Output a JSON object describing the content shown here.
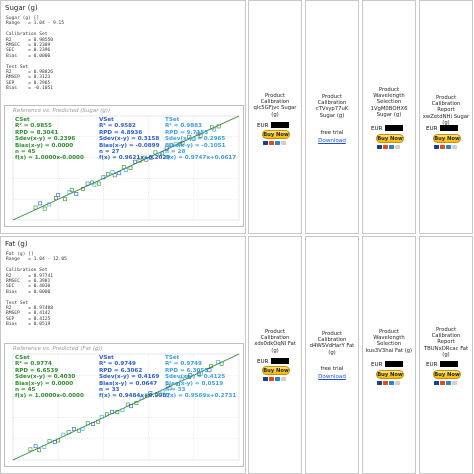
{
  "sections": [
    {
      "title": "Sugar (g)",
      "stats_text": "Sugar (g) []\nRange   = 1.04 - 9.15\n\nCalibration Set\nR2      = 0.98550\nRMSEC   = 0.2389\nSEC     = 0.2396\nBias    = 0.0000\n\nTest Set\nR2      = 0.98826\nRMSEP   = 0.3123\nSEP     = 0.2965\nBias    = -0.1051",
      "plot_title": "Reference vs. Predicted (Sugar (g))",
      "cset": "CSet\nR² = 0.9855\nRPD = 8.3041\nSdev(x-y) = 0.2396\nBias(x-y) = 0.0000\nn = 45\nf(x) = 1.0000x-0.0000",
      "vset": "VSet\nR² = 0.9582\nRPD = 4.8936\nSdev(x-y) = 0.3158\nBias(x-y) = -0.0899\nn = 27\nf(x) = 0.9621x+0.2029",
      "tset": "TSet\nR² = 0.9883\nRPD = 9.7155\nSdev(x-y) = 0.2965\nBias(x-y) = -0.1051\nn = 28\nf(x) = 0.9747x+0.0617",
      "cards": [
        {
          "title": "Product Calibration\nqlc5GFjvc Sugar\n(g)",
          "price": "EUR",
          "buy": "Buy Now",
          "kind": "buy"
        },
        {
          "title": "Product\nCalibration\ncTVsyp77uK\nSugar (g)",
          "trial": "free trial",
          "download": "Download",
          "kind": "trial"
        },
        {
          "title": "Product\nWavelength\nSelection\n1VgM0BOHX6\nSugar (g)",
          "price": "EUR",
          "buy": "Buy Now",
          "kind": "buy"
        },
        {
          "title": "Product Calibration\nReport\nxwZetdNHi Sugar\n(g)",
          "price": "EUR",
          "buy": "Buy Now",
          "kind": "buy"
        }
      ]
    },
    {
      "title": "Fat (g)",
      "stats_text": "Fat (g) []\nRange   = 1.04 - 12.05\n\nCalibration Set\nR2      = 0.97741\nRMSEC   = 0.3981\nSEC     = 0.4030\nBias    = 0.0000\n\nTest Set\nR2      = 0.97488\nRMSEP   = 0.4142\nSEP     = 0.4125\nBias    = 0.0519",
      "plot_title": "Reference vs. Predicted (Fat (g))",
      "cset": "CSet\nR² = 0.9774\nRPD = 6.6539\nSdev(x-y) = 0.4030\nBias(x-y) = 0.0000\nn = 45\nf(x) = 1.0000x-0.0000",
      "vset": "VSet\nR² = 0.9749\nRPD = 6.3062\nSdev(x-y) = 0.4169\nBias(x-y) = 0.0647\nn = 33\nf(x) = 0.9484x+0.2987",
      "tset": "TSet\nR² = 0.9749\nRPD = 6.3055\nSdev(x-y) = 0.4125\nBias(x-y) = 0.0519\nn = 33\nf(x) = 0.9569x+0.2731",
      "cards": [
        {
          "title": "Product Calibration\nxds0dkOqNl Fat\n(g)",
          "price": "EUR",
          "buy": "Buy Now",
          "kind": "buy"
        },
        {
          "title": "Product\nCalibration\nd4WSVdHarY Fat\n(g)",
          "trial": "free trial",
          "download": "Download",
          "kind": "trial"
        },
        {
          "title": "Product\nWavelength\nSelection\nkus3V3hai Fat (g)",
          "price": "EUR",
          "buy": "Buy Now",
          "kind": "buy"
        },
        {
          "title": "Product Calibration\nReport\nTBUNxDRcac Fat\n(g)",
          "price": "EUR",
          "buy": "Buy Now",
          "kind": "buy"
        }
      ]
    }
  ],
  "colors": {
    "cset": "#2e8b2e",
    "vset": "#2a5cc9",
    "tset": "#3aa0e0",
    "buy_button": "#f7b800",
    "link": "#1a4fd6"
  },
  "chart_data": [
    {
      "type": "scatter",
      "title": "Reference vs. Predicted (Sugar (g))",
      "xlim": [
        0,
        10
      ],
      "ylim": [
        0,
        10
      ],
      "series": [
        {
          "name": "CSet",
          "points": [
            [
              1.0,
              1.2
            ],
            [
              1.4,
              1.1
            ],
            [
              1.9,
              2.1
            ],
            [
              2.3,
              2.0
            ],
            [
              2.6,
              2.9
            ],
            [
              3.1,
              3.0
            ],
            [
              3.5,
              3.6
            ],
            [
              3.8,
              3.5
            ],
            [
              4.2,
              4.4
            ],
            [
              4.5,
              4.3
            ],
            [
              4.9,
              5.1
            ],
            [
              5.2,
              5.0
            ],
            [
              5.6,
              5.7
            ],
            [
              5.9,
              5.8
            ],
            [
              6.3,
              6.5
            ],
            [
              6.6,
              6.4
            ],
            [
              7.0,
              7.2
            ],
            [
              7.4,
              7.3
            ],
            [
              7.8,
              8.0
            ],
            [
              8.3,
              8.1
            ],
            [
              8.8,
              8.9
            ],
            [
              9.1,
              9.0
            ]
          ]
        },
        {
          "name": "VSet",
          "points": [
            [
              1.2,
              1.6
            ],
            [
              2.0,
              2.4
            ],
            [
              2.8,
              2.5
            ],
            [
              3.3,
              3.5
            ],
            [
              4.0,
              4.1
            ],
            [
              4.7,
              4.5
            ],
            [
              5.4,
              5.6
            ],
            [
              6.1,
              6.0
            ],
            [
              6.8,
              6.9
            ],
            [
              7.5,
              7.4
            ],
            [
              8.2,
              8.3
            ]
          ]
        },
        {
          "name": "TSet",
          "points": [
            [
              1.6,
              1.5
            ],
            [
              2.5,
              2.7
            ],
            [
              3.6,
              3.4
            ],
            [
              4.4,
              4.6
            ],
            [
              5.0,
              4.8
            ],
            [
              5.8,
              6.0
            ],
            [
              6.5,
              6.3
            ],
            [
              7.2,
              7.3
            ],
            [
              8.0,
              7.8
            ],
            [
              8.9,
              8.7
            ]
          ]
        }
      ]
    },
    {
      "type": "scatter",
      "title": "Reference vs. Predicted (Fat (g))",
      "xlim": [
        0,
        13
      ],
      "ylim": [
        0,
        13
      ],
      "series": [
        {
          "name": "CSet",
          "points": [
            [
              1.0,
              1.3
            ],
            [
              1.5,
              1.2
            ],
            [
              2.1,
              2.3
            ],
            [
              2.6,
              2.4
            ],
            [
              3.2,
              3.4
            ],
            [
              3.8,
              3.6
            ],
            [
              4.3,
              4.5
            ],
            [
              4.9,
              4.7
            ],
            [
              5.4,
              5.6
            ],
            [
              6.0,
              5.9
            ],
            [
              6.6,
              6.8
            ],
            [
              7.1,
              7.0
            ],
            [
              7.7,
              7.9
            ],
            [
              8.3,
              8.1
            ],
            [
              8.9,
              9.1
            ],
            [
              9.5,
              9.3
            ],
            [
              10.1,
              10.2
            ],
            [
              10.7,
              10.6
            ],
            [
              11.4,
              11.5
            ],
            [
              12.0,
              11.8
            ]
          ]
        },
        {
          "name": "VSet",
          "points": [
            [
              1.3,
              1.7
            ],
            [
              2.4,
              2.2
            ],
            [
              3.5,
              3.8
            ],
            [
              4.6,
              4.4
            ],
            [
              5.7,
              5.9
            ],
            [
              6.8,
              6.6
            ],
            [
              7.9,
              8.2
            ],
            [
              9.0,
              8.8
            ],
            [
              10.2,
              10.4
            ],
            [
              11.3,
              11.0
            ]
          ]
        },
        {
          "name": "TSet",
          "points": [
            [
              1.8,
              1.6
            ],
            [
              2.9,
              3.1
            ],
            [
              4.0,
              3.8
            ],
            [
              5.1,
              5.3
            ],
            [
              6.3,
              6.1
            ],
            [
              7.4,
              7.6
            ],
            [
              8.6,
              8.4
            ],
            [
              9.7,
              9.9
            ],
            [
              10.8,
              10.6
            ],
            [
              11.8,
              12.0
            ]
          ]
        }
      ]
    }
  ]
}
